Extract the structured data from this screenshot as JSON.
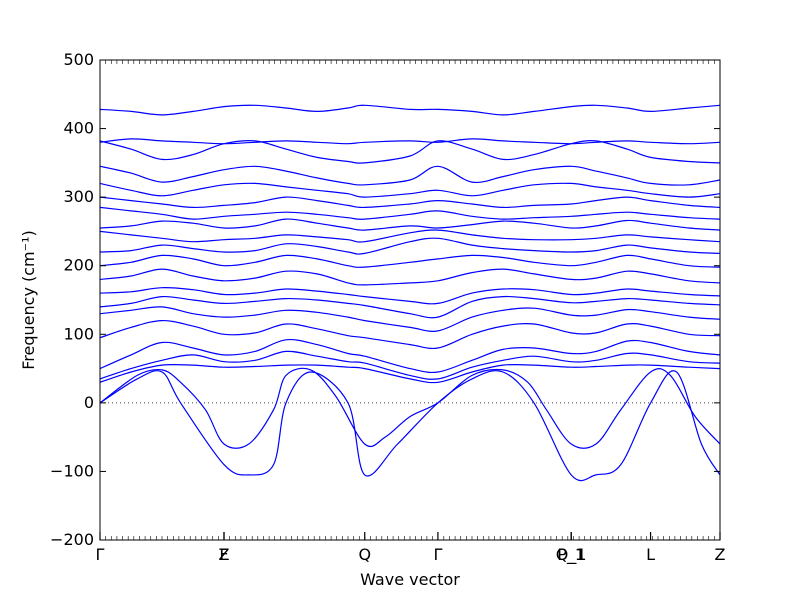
{
  "chart_data": {
    "type": "line",
    "xlabel": "Wave vector",
    "ylabel": "Frequency (cm⁻¹)",
    "ylim": [
      -200,
      500
    ],
    "yticks": [
      -200,
      -100,
      0,
      100,
      200,
      300,
      400,
      500
    ],
    "x_range": [
      0,
      1
    ],
    "zero_reference_line": true,
    "line_color": "#0000ff",
    "high_symmetry_points": [
      {
        "label": "Γ",
        "x": 0.0
      },
      {
        "label": "F",
        "x": 0.2
      },
      {
        "label": "Z",
        "x": 0.2
      },
      {
        "label": "Q",
        "x": 0.427
      },
      {
        "label": "Γ",
        "x": 0.545
      },
      {
        "label": "P_1",
        "x": 0.76
      },
      {
        "label": "Q_1",
        "x": 0.76
      },
      {
        "label": "L",
        "x": 0.888
      },
      {
        "label": "Z",
        "x": 1.0
      }
    ],
    "series": [
      {
        "x": [
          0,
          0.06,
          0.1,
          0.13,
          0.2,
          0.24,
          0.28,
          0.3,
          0.34,
          0.4,
          0.427,
          0.48,
          0.545,
          0.6,
          0.65,
          0.7,
          0.76,
          0.8,
          0.84,
          0.888,
          0.93,
          0.97,
          1.0
        ],
        "y": [
          0,
          35,
          45,
          0,
          -90,
          -105,
          -90,
          0,
          45,
          0,
          -105,
          -60,
          0,
          35,
          45,
          0,
          -105,
          -105,
          -90,
          0,
          45,
          -60,
          -105
        ]
      },
      {
        "x": [
          0,
          0.06,
          0.1,
          0.13,
          0.17,
          0.2,
          0.24,
          0.28,
          0.3,
          0.34,
          0.38,
          0.427,
          0.46,
          0.5,
          0.545,
          0.6,
          0.65,
          0.69,
          0.72,
          0.76,
          0.8,
          0.84,
          0.888,
          0.92,
          0.96,
          1.0
        ],
        "y": [
          0,
          40,
          48,
          30,
          -10,
          -60,
          -60,
          -10,
          40,
          48,
          10,
          -60,
          -50,
          -20,
          0,
          40,
          48,
          30,
          -10,
          -60,
          -60,
          -10,
          45,
          40,
          -20,
          -60
        ]
      },
      {
        "x": [
          0,
          0.05,
          0.1,
          0.15,
          0.2,
          0.25,
          0.3,
          0.35,
          0.4,
          0.427,
          0.5,
          0.545,
          0.6,
          0.65,
          0.7,
          0.76,
          0.8,
          0.85,
          0.888,
          0.95,
          1.0
        ],
        "y": [
          30,
          45,
          55,
          55,
          52,
          53,
          55,
          55,
          52,
          50,
          35,
          30,
          45,
          55,
          55,
          52,
          53,
          55,
          55,
          52,
          50
        ]
      },
      {
        "x": [
          0,
          0.05,
          0.1,
          0.15,
          0.2,
          0.25,
          0.3,
          0.35,
          0.4,
          0.427,
          0.5,
          0.545,
          0.6,
          0.65,
          0.7,
          0.76,
          0.8,
          0.85,
          0.888,
          0.95,
          1.0
        ],
        "y": [
          35,
          50,
          62,
          70,
          60,
          62,
          75,
          68,
          60,
          58,
          40,
          35,
          52,
          62,
          68,
          60,
          62,
          72,
          70,
          60,
          58
        ]
      },
      {
        "x": [
          0,
          0.05,
          0.1,
          0.15,
          0.2,
          0.25,
          0.3,
          0.35,
          0.4,
          0.427,
          0.5,
          0.545,
          0.6,
          0.65,
          0.7,
          0.76,
          0.8,
          0.85,
          0.888,
          0.95,
          1.0
        ],
        "y": [
          50,
          70,
          88,
          80,
          70,
          75,
          92,
          85,
          72,
          68,
          50,
          45,
          62,
          78,
          80,
          72,
          75,
          90,
          88,
          75,
          70
        ]
      },
      {
        "x": [
          0,
          0.05,
          0.1,
          0.15,
          0.2,
          0.25,
          0.3,
          0.35,
          0.4,
          0.427,
          0.5,
          0.545,
          0.6,
          0.65,
          0.7,
          0.76,
          0.8,
          0.85,
          0.888,
          0.95,
          1.0
        ],
        "y": [
          95,
          110,
          120,
          112,
          100,
          102,
          115,
          108,
          98,
          95,
          85,
          80,
          100,
          112,
          115,
          102,
          102,
          115,
          112,
          100,
          98
        ]
      },
      {
        "x": [
          0,
          0.05,
          0.1,
          0.15,
          0.2,
          0.25,
          0.3,
          0.35,
          0.4,
          0.427,
          0.5,
          0.545,
          0.6,
          0.65,
          0.7,
          0.76,
          0.8,
          0.85,
          0.888,
          0.95,
          1.0
        ],
        "y": [
          130,
          135,
          140,
          130,
          125,
          128,
          135,
          132,
          125,
          120,
          110,
          105,
          125,
          135,
          138,
          128,
          128,
          136,
          133,
          125,
          122
        ]
      },
      {
        "x": [
          0,
          0.05,
          0.1,
          0.15,
          0.2,
          0.25,
          0.3,
          0.35,
          0.4,
          0.427,
          0.5,
          0.545,
          0.6,
          0.65,
          0.7,
          0.76,
          0.8,
          0.85,
          0.888,
          0.95,
          1.0
        ],
        "y": [
          140,
          145,
          155,
          150,
          145,
          148,
          152,
          150,
          145,
          142,
          130,
          125,
          148,
          155,
          152,
          146,
          148,
          152,
          150,
          145,
          143
        ]
      },
      {
        "x": [
          0,
          0.05,
          0.1,
          0.15,
          0.2,
          0.25,
          0.3,
          0.35,
          0.4,
          0.427,
          0.5,
          0.545,
          0.6,
          0.65,
          0.7,
          0.76,
          0.8,
          0.85,
          0.888,
          0.95,
          1.0
        ],
        "y": [
          160,
          162,
          168,
          165,
          158,
          160,
          166,
          163,
          158,
          155,
          148,
          145,
          160,
          166,
          165,
          158,
          160,
          166,
          163,
          158,
          156
        ]
      },
      {
        "x": [
          0,
          0.05,
          0.1,
          0.15,
          0.2,
          0.25,
          0.3,
          0.35,
          0.4,
          0.427,
          0.5,
          0.545,
          0.6,
          0.65,
          0.7,
          0.76,
          0.8,
          0.85,
          0.888,
          0.95,
          1.0
        ],
        "y": [
          180,
          185,
          195,
          185,
          178,
          182,
          192,
          188,
          175,
          172,
          175,
          178,
          190,
          195,
          188,
          180,
          182,
          192,
          188,
          178,
          175
        ]
      },
      {
        "x": [
          0,
          0.05,
          0.1,
          0.15,
          0.2,
          0.25,
          0.3,
          0.35,
          0.4,
          0.427,
          0.5,
          0.545,
          0.6,
          0.65,
          0.7,
          0.76,
          0.8,
          0.85,
          0.888,
          0.95,
          1.0
        ],
        "y": [
          200,
          205,
          215,
          210,
          200,
          205,
          215,
          210,
          200,
          198,
          205,
          210,
          215,
          212,
          205,
          200,
          205,
          215,
          210,
          200,
          198
        ]
      },
      {
        "x": [
          0,
          0.05,
          0.1,
          0.15,
          0.2,
          0.25,
          0.3,
          0.35,
          0.4,
          0.427,
          0.5,
          0.545,
          0.6,
          0.65,
          0.7,
          0.76,
          0.8,
          0.85,
          0.888,
          0.95,
          1.0
        ],
        "y": [
          220,
          222,
          230,
          225,
          220,
          222,
          232,
          228,
          220,
          218,
          235,
          240,
          230,
          225,
          222,
          220,
          222,
          230,
          226,
          220,
          218
        ]
      },
      {
        "x": [
          0,
          0.05,
          0.1,
          0.15,
          0.2,
          0.25,
          0.3,
          0.35,
          0.4,
          0.427,
          0.5,
          0.545,
          0.6,
          0.65,
          0.7,
          0.76,
          0.8,
          0.85,
          0.888,
          0.95,
          1.0
        ],
        "y": [
          250,
          245,
          240,
          235,
          238,
          240,
          245,
          242,
          238,
          235,
          248,
          252,
          245,
          240,
          238,
          238,
          240,
          245,
          242,
          238,
          235
        ]
      },
      {
        "x": [
          0,
          0.05,
          0.1,
          0.15,
          0.2,
          0.25,
          0.3,
          0.35,
          0.4,
          0.427,
          0.5,
          0.545,
          0.6,
          0.65,
          0.7,
          0.76,
          0.8,
          0.85,
          0.888,
          0.95,
          1.0
        ],
        "y": [
          255,
          258,
          265,
          262,
          255,
          258,
          268,
          262,
          255,
          252,
          258,
          255,
          260,
          265,
          262,
          255,
          258,
          266,
          262,
          255,
          252
        ]
      },
      {
        "x": [
          0,
          0.05,
          0.1,
          0.15,
          0.2,
          0.25,
          0.3,
          0.35,
          0.4,
          0.427,
          0.5,
          0.545,
          0.6,
          0.65,
          0.7,
          0.76,
          0.8,
          0.85,
          0.888,
          0.95,
          1.0
        ],
        "y": [
          285,
          280,
          275,
          268,
          272,
          275,
          278,
          275,
          270,
          268,
          275,
          280,
          272,
          268,
          270,
          272,
          275,
          278,
          275,
          270,
          268
        ]
      },
      {
        "x": [
          0,
          0.05,
          0.1,
          0.15,
          0.2,
          0.25,
          0.3,
          0.35,
          0.4,
          0.427,
          0.5,
          0.545,
          0.6,
          0.65,
          0.7,
          0.76,
          0.8,
          0.85,
          0.888,
          0.95,
          1.0
        ],
        "y": [
          300,
          295,
          290,
          285,
          288,
          292,
          300,
          295,
          288,
          285,
          290,
          295,
          290,
          285,
          288,
          290,
          295,
          300,
          295,
          288,
          285
        ]
      },
      {
        "x": [
          0,
          0.05,
          0.1,
          0.15,
          0.2,
          0.25,
          0.3,
          0.35,
          0.4,
          0.427,
          0.5,
          0.545,
          0.6,
          0.65,
          0.7,
          0.76,
          0.8,
          0.85,
          0.888,
          0.95,
          1.0
        ],
        "y": [
          320,
          310,
          302,
          310,
          318,
          320,
          315,
          310,
          305,
          300,
          305,
          310,
          302,
          310,
          318,
          320,
          315,
          310,
          305,
          300,
          305
        ]
      },
      {
        "x": [
          0,
          0.05,
          0.1,
          0.15,
          0.2,
          0.25,
          0.3,
          0.35,
          0.4,
          0.427,
          0.5,
          0.545,
          0.6,
          0.65,
          0.7,
          0.76,
          0.8,
          0.85,
          0.888,
          0.95,
          1.0
        ],
        "y": [
          345,
          335,
          322,
          330,
          340,
          345,
          338,
          328,
          320,
          318,
          325,
          345,
          322,
          330,
          340,
          345,
          338,
          328,
          320,
          318,
          325
        ]
      },
      {
        "x": [
          0,
          0.05,
          0.1,
          0.15,
          0.2,
          0.25,
          0.3,
          0.35,
          0.4,
          0.427,
          0.5,
          0.545,
          0.6,
          0.65,
          0.7,
          0.76,
          0.8,
          0.85,
          0.888,
          0.95,
          1.0
        ],
        "y": [
          380,
          385,
          382,
          380,
          378,
          380,
          382,
          380,
          378,
          380,
          382,
          380,
          385,
          382,
          380,
          378,
          380,
          382,
          380,
          378,
          380
        ]
      },
      {
        "x": [
          0,
          0.05,
          0.1,
          0.15,
          0.2,
          0.25,
          0.3,
          0.35,
          0.4,
          0.427,
          0.5,
          0.545,
          0.6,
          0.65,
          0.7,
          0.76,
          0.8,
          0.85,
          0.888,
          0.95,
          1.0
        ],
        "y": [
          382,
          370,
          355,
          362,
          378,
          382,
          370,
          358,
          352,
          350,
          360,
          382,
          370,
          355,
          362,
          378,
          382,
          370,
          358,
          352,
          350
        ]
      },
      {
        "x": [
          0,
          0.05,
          0.1,
          0.15,
          0.2,
          0.25,
          0.3,
          0.35,
          0.4,
          0.427,
          0.5,
          0.545,
          0.6,
          0.65,
          0.7,
          0.76,
          0.8,
          0.85,
          0.888,
          0.95,
          1.0
        ],
        "y": [
          428,
          425,
          420,
          425,
          432,
          434,
          430,
          425,
          430,
          434,
          428,
          428,
          425,
          420,
          425,
          432,
          434,
          430,
          425,
          430,
          434
        ]
      }
    ]
  }
}
